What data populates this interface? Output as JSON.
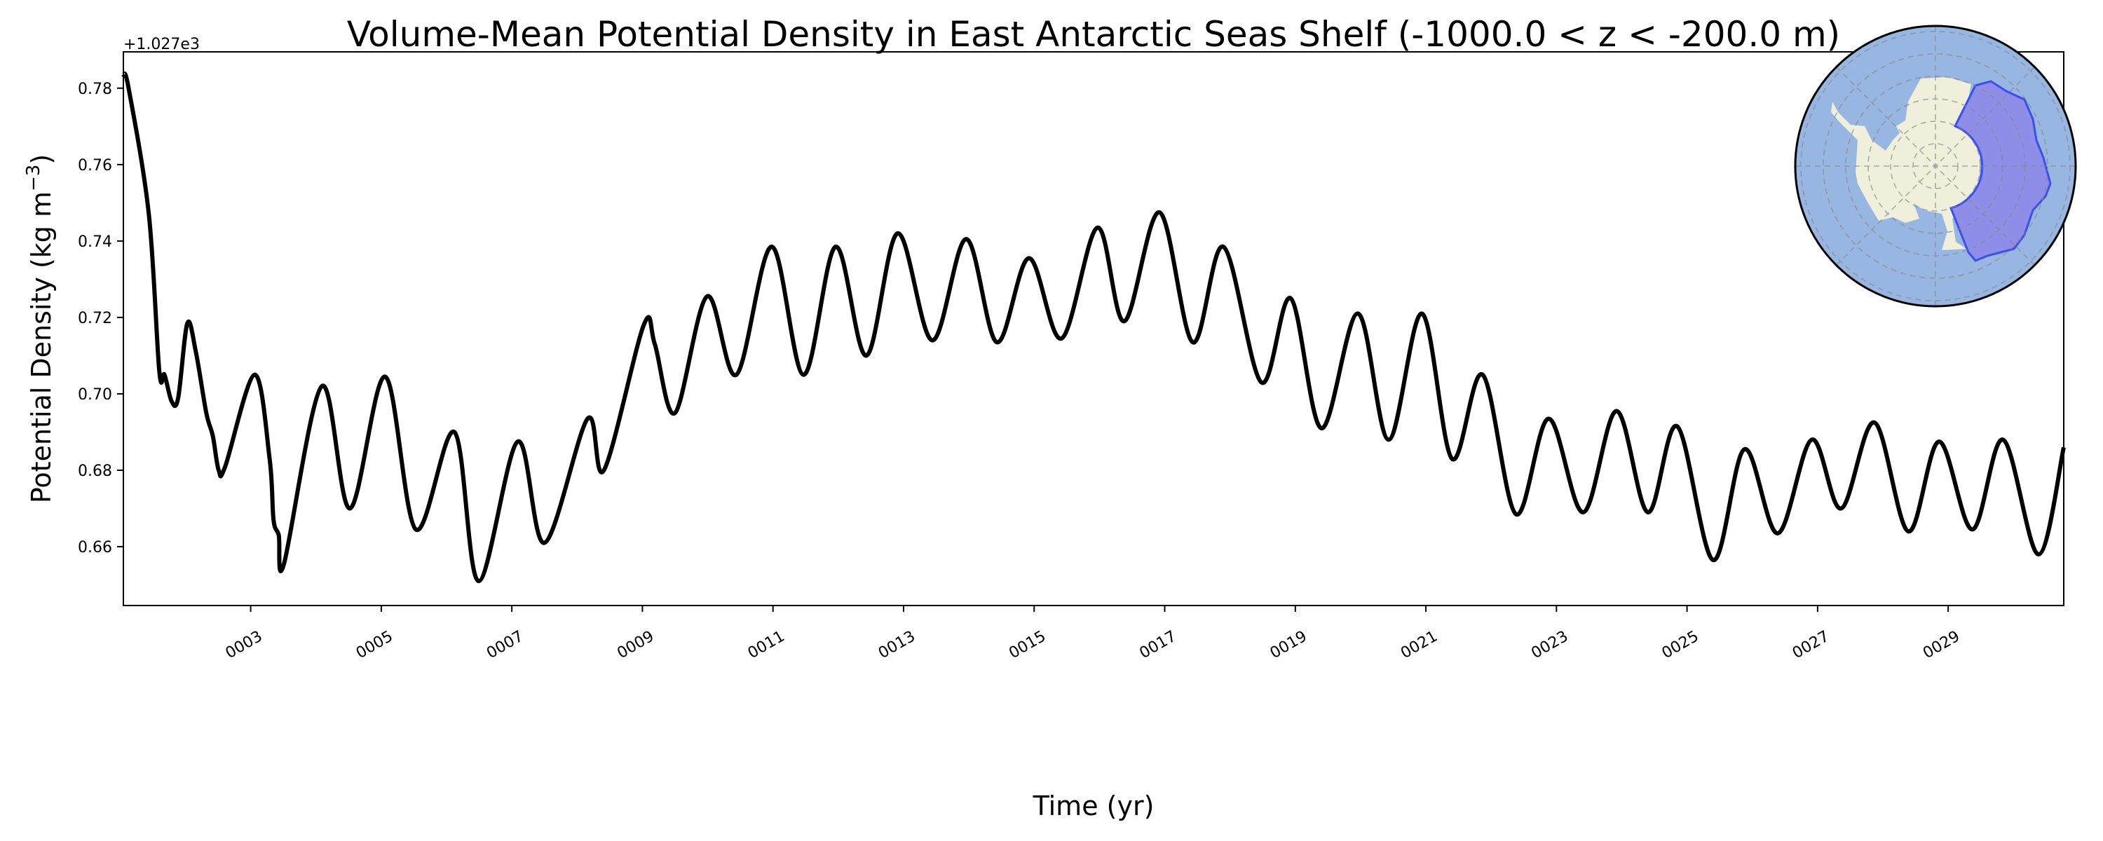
{
  "chart_data": {
    "type": "line",
    "title": "Volume-Mean Potential Density in East Antarctic Seas Shelf (-1000.0 < z < -200.0 m)",
    "xlabel": "Time (yr)",
    "ylabel": "Potential Density (kg m",
    "ylabel_superscript": "−3",
    "ylabel_suffix": ")",
    "y_offset_label": "+1.027e3",
    "xlim": [
      1.05,
      30.77
    ],
    "ylim": [
      0.6446,
      0.7895
    ],
    "xticks": [
      3,
      5,
      7,
      9,
      11,
      13,
      15,
      17,
      19,
      21,
      23,
      25,
      27,
      29
    ],
    "xtick_labels": [
      "0003",
      "0005",
      "0007",
      "0009",
      "0011",
      "0013",
      "0015",
      "0017",
      "0019",
      "0021",
      "0023",
      "0025",
      "0027",
      "0029"
    ],
    "yticks": [
      0.66,
      0.68,
      0.7,
      0.72,
      0.74,
      0.76,
      0.78
    ],
    "ytick_labels": [
      "0.66",
      "0.68",
      "0.70",
      "0.72",
      "0.74",
      "0.76",
      "0.78"
    ],
    "grid": false,
    "line_color": "#000000",
    "series": [
      {
        "name": "East Antarctic Seas Shelf",
        "x": [
          1.05,
          1.13,
          1.44,
          1.6,
          1.68,
          1.79,
          1.89,
          2.03,
          2.16,
          2.32,
          2.42,
          2.51,
          2.61,
          3.06,
          3.29,
          3.35,
          3.43,
          3.51,
          4.09,
          4.52,
          5.06,
          5.53,
          6.12,
          6.49,
          7.09,
          7.5,
          8.16,
          8.41,
          9.02,
          9.19,
          9.5,
          9.99,
          10.44,
          10.98,
          11.47,
          11.96,
          12.43,
          12.91,
          13.44,
          13.96,
          14.43,
          14.92,
          15.42,
          15.97,
          16.38,
          16.92,
          17.43,
          17.9,
          18.48,
          18.93,
          19.4,
          19.96,
          20.43,
          20.94,
          21.4,
          21.87,
          22.38,
          22.88,
          23.41,
          23.92,
          24.4,
          24.85,
          25.4,
          25.88,
          26.39,
          26.91,
          27.36,
          27.87,
          28.39,
          28.86,
          29.37,
          29.84,
          30.38,
          30.77
        ],
        "y": [
          0.7835,
          0.78,
          0.747,
          0.706,
          0.705,
          0.698,
          0.699,
          0.7185,
          0.711,
          0.695,
          0.689,
          0.68,
          0.681,
          0.705,
          0.683,
          0.667,
          0.663,
          0.6555,
          0.702,
          0.67,
          0.7045,
          0.6645,
          0.69,
          0.651,
          0.6875,
          0.661,
          0.6935,
          0.68,
          0.718,
          0.713,
          0.695,
          0.7255,
          0.705,
          0.7385,
          0.705,
          0.7385,
          0.71,
          0.742,
          0.714,
          0.7405,
          0.7135,
          0.7355,
          0.7145,
          0.7435,
          0.719,
          0.7475,
          0.7135,
          0.7385,
          0.703,
          0.725,
          0.691,
          0.721,
          0.688,
          0.721,
          0.683,
          0.705,
          0.6685,
          0.6935,
          0.669,
          0.6955,
          0.669,
          0.6915,
          0.6565,
          0.6855,
          0.6635,
          0.688,
          0.67,
          0.6925,
          0.664,
          0.6875,
          0.6645,
          0.688,
          0.658,
          0.686
        ]
      }
    ],
    "inset_map": {
      "ocean_color": "#97b6e1",
      "land_color": "#efefdb",
      "region_color": "#8e8ee8",
      "region_edge_color": "#3a4ff0"
    }
  }
}
